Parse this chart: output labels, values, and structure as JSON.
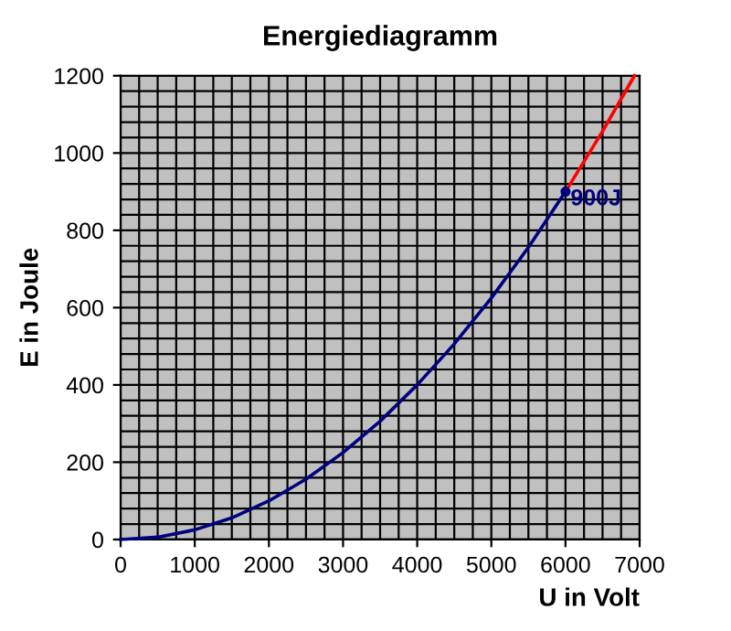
{
  "chart_data": {
    "type": "line",
    "title": "Energiediagramm",
    "xlabel": "U in Volt",
    "ylabel": "E in Joule",
    "xlim": [
      0,
      7000
    ],
    "ylim": [
      0,
      1200
    ],
    "xticks": [
      0,
      1000,
      2000,
      3000,
      4000,
      5000,
      6000,
      7000
    ],
    "yticks": [
      0,
      200,
      400,
      600,
      800,
      1000,
      1200
    ],
    "grid": true,
    "legend": false,
    "marker": "none",
    "line_style": "solid",
    "annotations": [
      {
        "text": "900J",
        "x": 6000,
        "y": 900
      }
    ],
    "series": [
      {
        "color": "#000080",
        "x": [
          0,
          500,
          1000,
          1500,
          2000,
          2500,
          3000,
          3500,
          4000,
          4500,
          5000,
          5500,
          6000
        ],
        "values": [
          0,
          6,
          25,
          56,
          100,
          156,
          225,
          306,
          400,
          506,
          625,
          756,
          900
        ]
      },
      {
        "color": "#ff0000",
        "x": [
          6000,
          6500,
          6930
        ],
        "values": [
          900,
          1056,
          1200
        ]
      }
    ]
  }
}
